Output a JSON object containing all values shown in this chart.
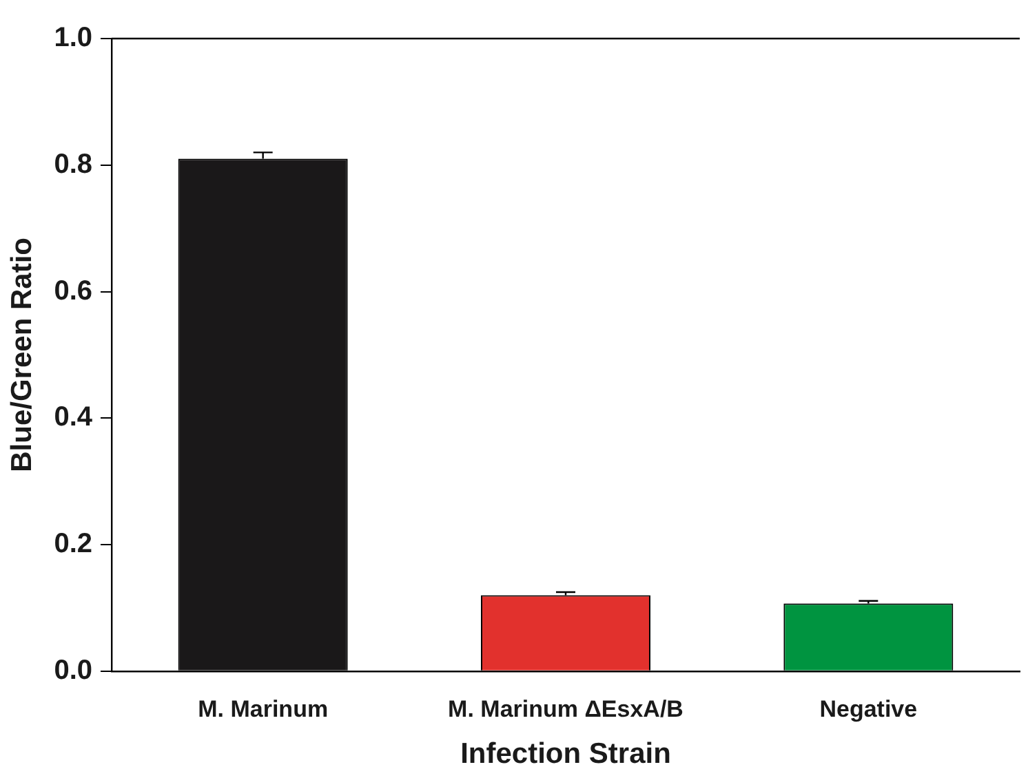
{
  "chart_data": {
    "type": "bar",
    "xlabel": "Infection Strain",
    "ylabel": "Blue/Green Ratio",
    "categories": [
      "M. Marinum",
      "M. Marinum ΔEsxA/B",
      "Negative"
    ],
    "values": [
      0.81,
      0.12,
      0.107
    ],
    "errors": [
      0.01,
      0.005,
      0.004
    ],
    "colors": [
      "#1a1819",
      "#e2312d",
      "#009440"
    ],
    "ylim": [
      0,
      1.0
    ],
    "yticks": [
      {
        "value": 0,
        "label": "0.0"
      },
      {
        "value": 0.2,
        "label": "0.2"
      },
      {
        "value": 0.4,
        "label": "0.4"
      },
      {
        "value": 0.6,
        "label": "0.6"
      },
      {
        "value": 0.8,
        "label": "0.8"
      },
      {
        "value": 1.0,
        "label": "1.0"
      }
    ],
    "grid": false,
    "legend": false
  }
}
